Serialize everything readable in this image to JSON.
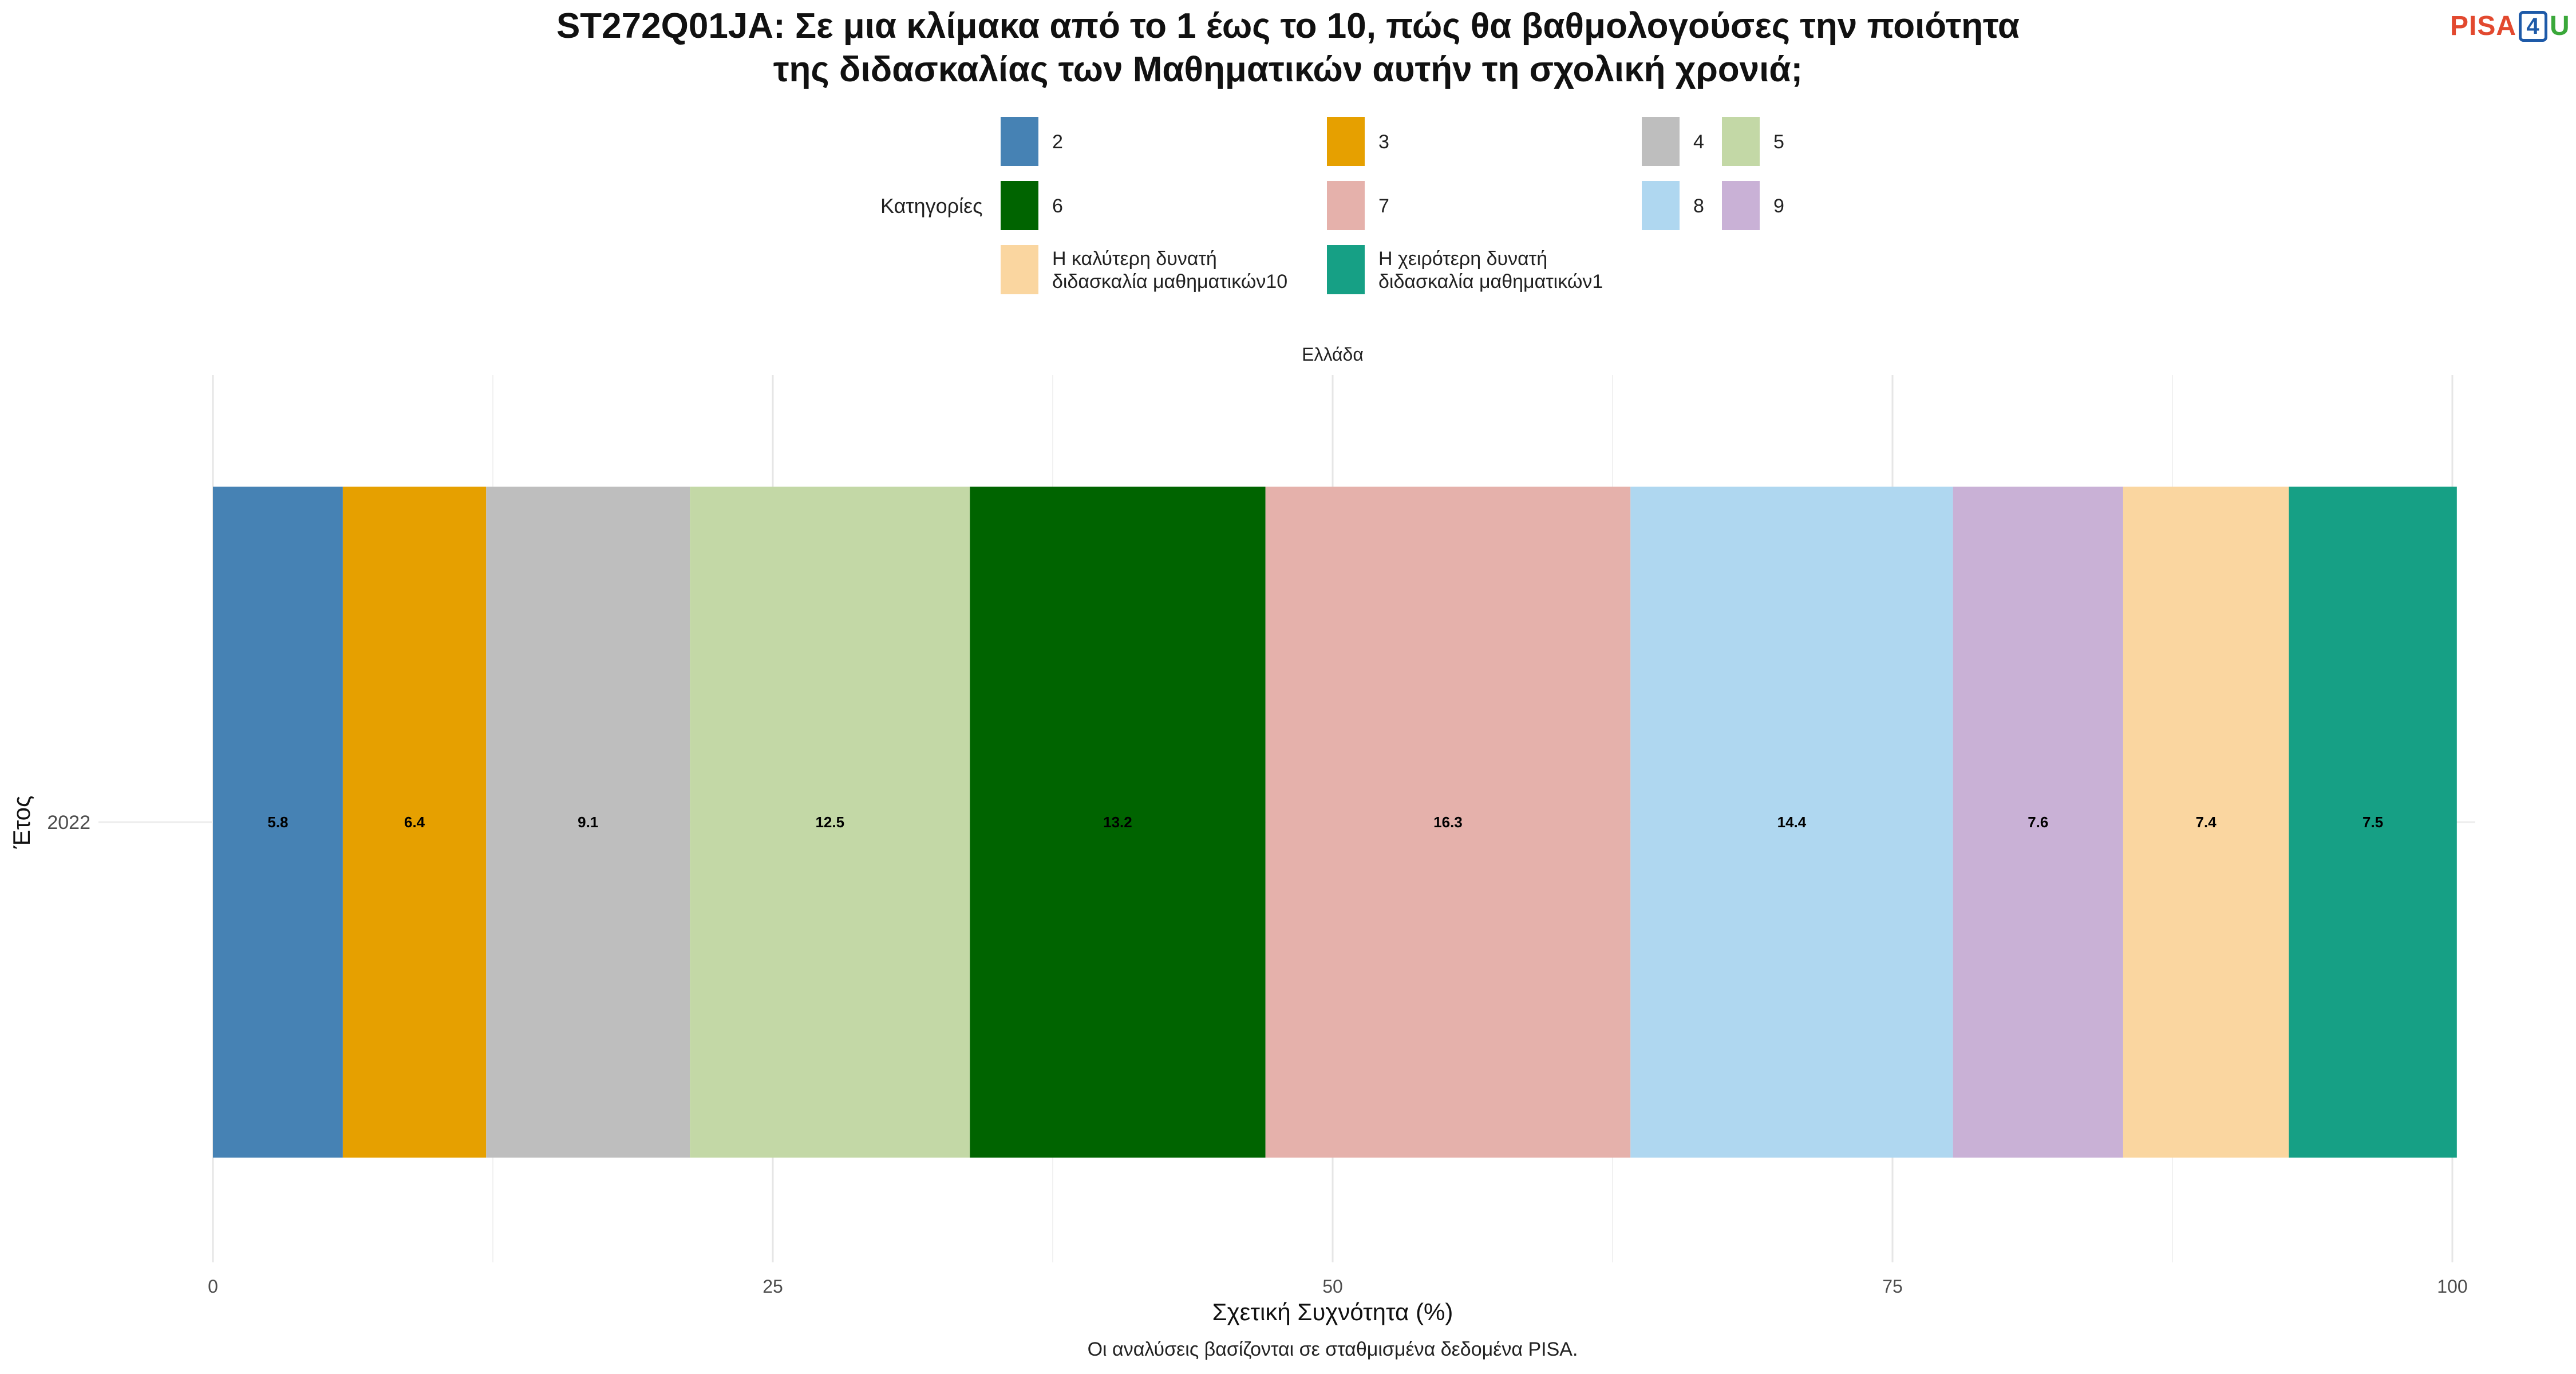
{
  "title_line1": "ST272Q01JA: Σε μια κλίμακα από το 1 έως το 10, πώς θα βαθμολογούσες την ποιότητα",
  "title_line2": "της διδασκαλίας των Μαθηματικών αυτήν τη σχολική χρονιά;",
  "logo": {
    "part1": "PISA",
    "part2": "4",
    "part3": "U"
  },
  "legend": {
    "title": "Κατηγορίες",
    "placement": "top",
    "items": [
      {
        "label_lines": [
          "2"
        ],
        "color": "#4682b4"
      },
      {
        "label_lines": [
          "3"
        ],
        "color": "#e6a000"
      },
      {
        "label_lines": [
          "4"
        ],
        "color": "#bebebe"
      },
      {
        "label_lines": [
          "5"
        ],
        "color": "#c3d8a6"
      },
      {
        "label_lines": [
          "6"
        ],
        "color": "#006400"
      },
      {
        "label_lines": [
          "7"
        ],
        "color": "#e5b1ab"
      },
      {
        "label_lines": [
          "8"
        ],
        "color": "#afd7f0"
      },
      {
        "label_lines": [
          "9"
        ],
        "color": "#c9b1d6"
      },
      {
        "label_lines": [
          "Η καλύτερη δυνατή",
          "διδασκαλία μαθηματικών10"
        ],
        "color": "#fad6a0"
      },
      {
        "label_lines": [
          "Η χειρότερη δυνατή",
          "διδασκαλία μαθηματικών1"
        ],
        "color": "#16a085"
      }
    ]
  },
  "facet_label": "Ελλάδα",
  "caption": "Οι αναλύσεις βασίζονται σε σταθμισμένα δεδομένα PISA.",
  "chart_data": {
    "type": "bar",
    "orientation": "horizontal",
    "stacked": true,
    "categories": [
      "2022"
    ],
    "xlabel": "Σχετική Συχνότητα (%)",
    "ylabel": "Έτος",
    "xlim": [
      0,
      100
    ],
    "xticks": [
      0,
      25,
      50,
      75,
      100
    ],
    "grid": true,
    "series": [
      {
        "name": "2",
        "values": [
          5.8
        ],
        "color": "#4682b4"
      },
      {
        "name": "3",
        "values": [
          6.4
        ],
        "color": "#e6a000"
      },
      {
        "name": "4",
        "values": [
          9.1
        ],
        "color": "#bebebe"
      },
      {
        "name": "5",
        "values": [
          12.5
        ],
        "color": "#c3d8a6"
      },
      {
        "name": "6",
        "values": [
          13.2
        ],
        "color": "#006400"
      },
      {
        "name": "7",
        "values": [
          16.3
        ],
        "color": "#e5b1ab"
      },
      {
        "name": "8",
        "values": [
          14.4
        ],
        "color": "#afd7f0"
      },
      {
        "name": "9",
        "values": [
          7.6
        ],
        "color": "#c9b1d6"
      },
      {
        "name": "Η καλύτερη δυνατή διδασκαλία μαθηματικών10",
        "values": [
          7.4
        ],
        "color": "#fad6a0"
      },
      {
        "name": "Η χειρότερη δυνατή διδασκαλία μαθηματικών1",
        "values": [
          7.5
        ],
        "color": "#16a085"
      }
    ]
  }
}
